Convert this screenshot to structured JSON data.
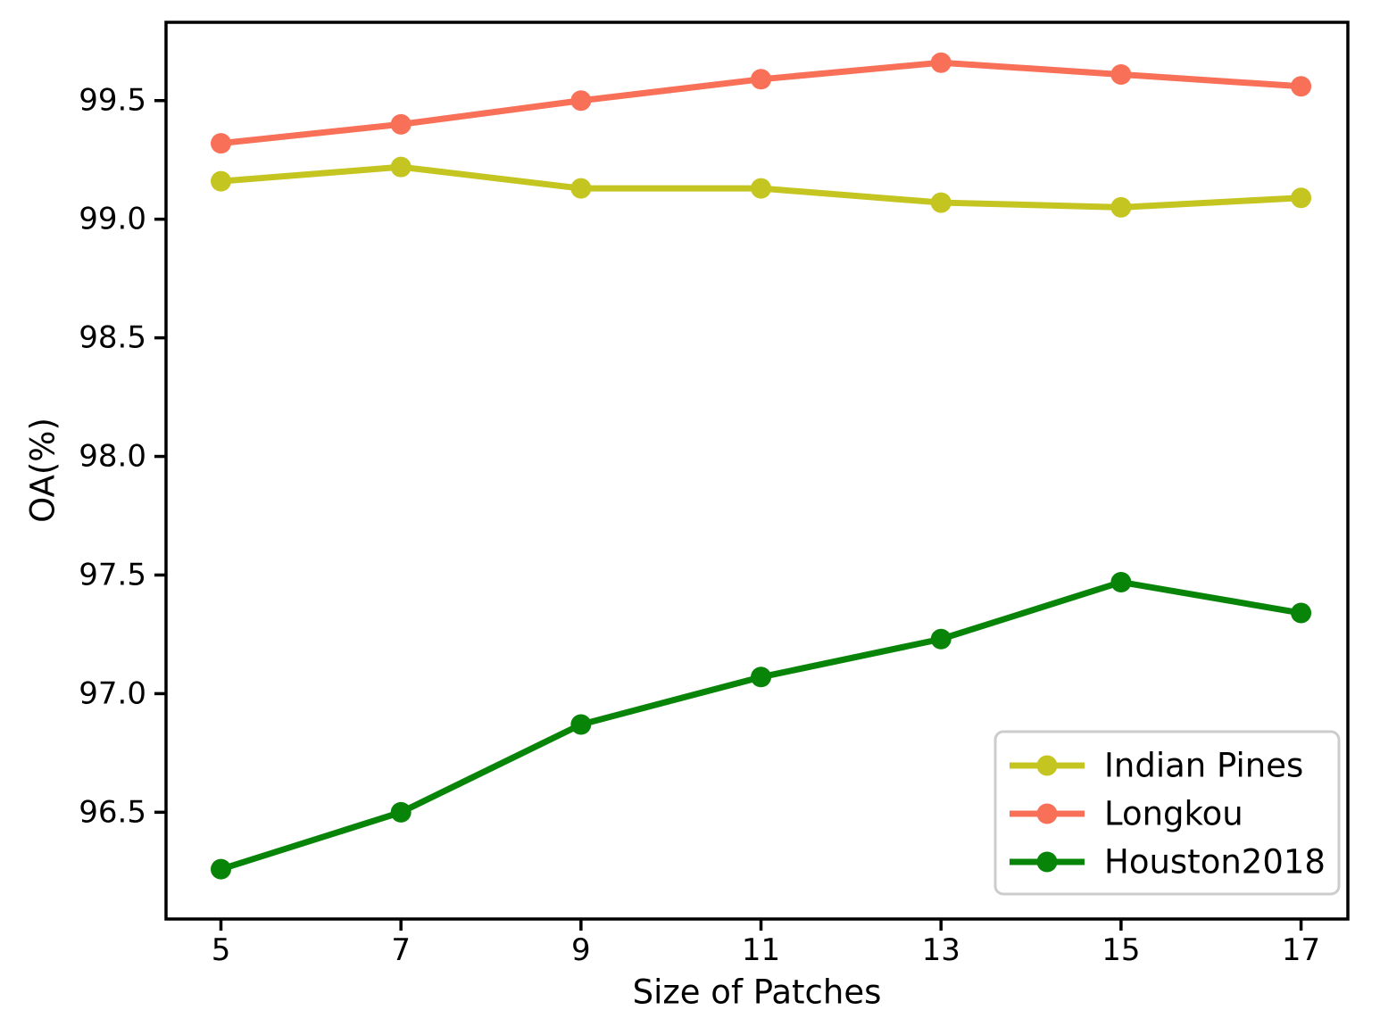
{
  "chart_data": {
    "type": "line",
    "title": "",
    "xlabel": "Size of Patches",
    "ylabel": "OA(%)",
    "x": [
      5,
      7,
      9,
      11,
      13,
      15,
      17
    ],
    "xticks": [
      5,
      7,
      9,
      11,
      13,
      15,
      17
    ],
    "yticks": [
      96.5,
      97.0,
      97.5,
      98.0,
      98.5,
      99.0,
      99.5
    ],
    "xlim": [
      4.39,
      17.52
    ],
    "ylim": [
      96.05,
      99.83
    ],
    "grid": false,
    "marker": "o",
    "legend_position": "lower right",
    "series": [
      {
        "name": "Indian Pines",
        "color": "#c5c521",
        "values": [
          99.16,
          99.22,
          99.13,
          99.13,
          99.07,
          99.05,
          99.09
        ]
      },
      {
        "name": "Longkou",
        "color": "#f97058",
        "values": [
          99.32,
          99.4,
          99.5,
          99.59,
          99.66,
          99.61,
          99.56
        ]
      },
      {
        "name": "Houston2018",
        "color": "#088408",
        "values": [
          96.26,
          96.5,
          96.87,
          97.07,
          97.23,
          97.47,
          97.34
        ]
      }
    ]
  }
}
